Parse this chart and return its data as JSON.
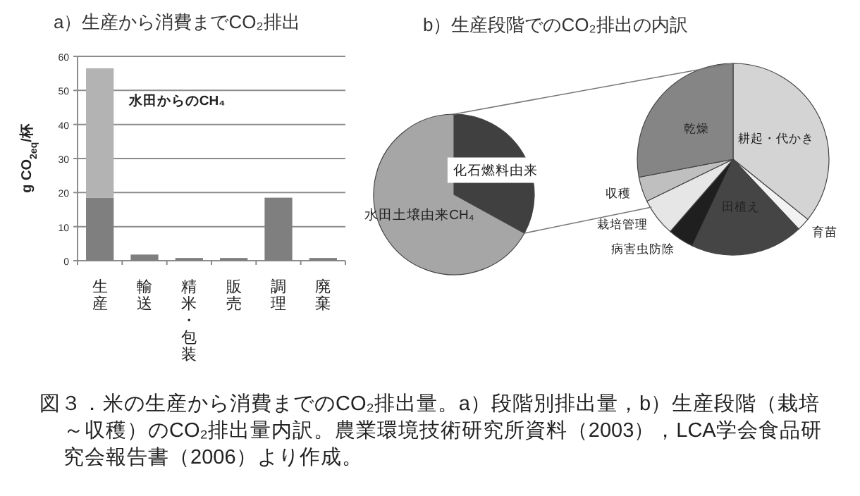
{
  "chart_data": [
    {
      "type": "bar",
      "title": "a）生産から消費までCO₂排出",
      "ylabel": "g CO$_{2eq}$/杯",
      "categories": [
        "生産",
        "輸送",
        "精米・包装",
        "販売",
        "調理",
        "廃棄"
      ],
      "stacked": true,
      "series": [
        {
          "color": "#7f7f7f",
          "values": [
            18.5,
            1.8,
            0.8,
            0.8,
            18.5,
            0.8
          ]
        },
        {
          "name": "水田からのCH₄",
          "color": "#b3b3b3",
          "values": [
            38,
            null,
            null,
            null,
            null,
            null
          ]
        }
      ],
      "ylim": [
        0,
        60
      ],
      "yticks": [
        0,
        10,
        20,
        30,
        40,
        50,
        60
      ],
      "grid": "y",
      "annotations": [
        "図３．米の生産から消費までのCO₂排出量。a）段階別排出量，b）生産段階（栽培～収穫）のCO₂排出量内訳。農業環境技術研究所資料（2003），LCA学会食品研究会報告書（2006）より作成。"
      ]
    },
    {
      "type": "pie",
      "title": "b）生産段階でのCO₂排出の内訳",
      "categories": [
        "化石燃料由来",
        "水田土壌由来CH₄"
      ],
      "values": [
        33,
        67
      ],
      "colors": [
        "#404040",
        "#a6a6a6"
      ]
    },
    {
      "type": "pie",
      "categories": [
        "耕起・代かき",
        "育苗",
        "田植え",
        "病害虫防除",
        "栽培管理",
        "収穫",
        "乾燥"
      ],
      "values": [
        35.8,
        2.2,
        19,
        4.4,
        6.4,
        4.2,
        28
      ],
      "colors": [
        "#d4d4d4",
        "#f2f2f2",
        "#454545",
        "#1f1f1f",
        "#e6e6e6",
        "#bfbfbf",
        "#858585"
      ]
    }
  ]
}
